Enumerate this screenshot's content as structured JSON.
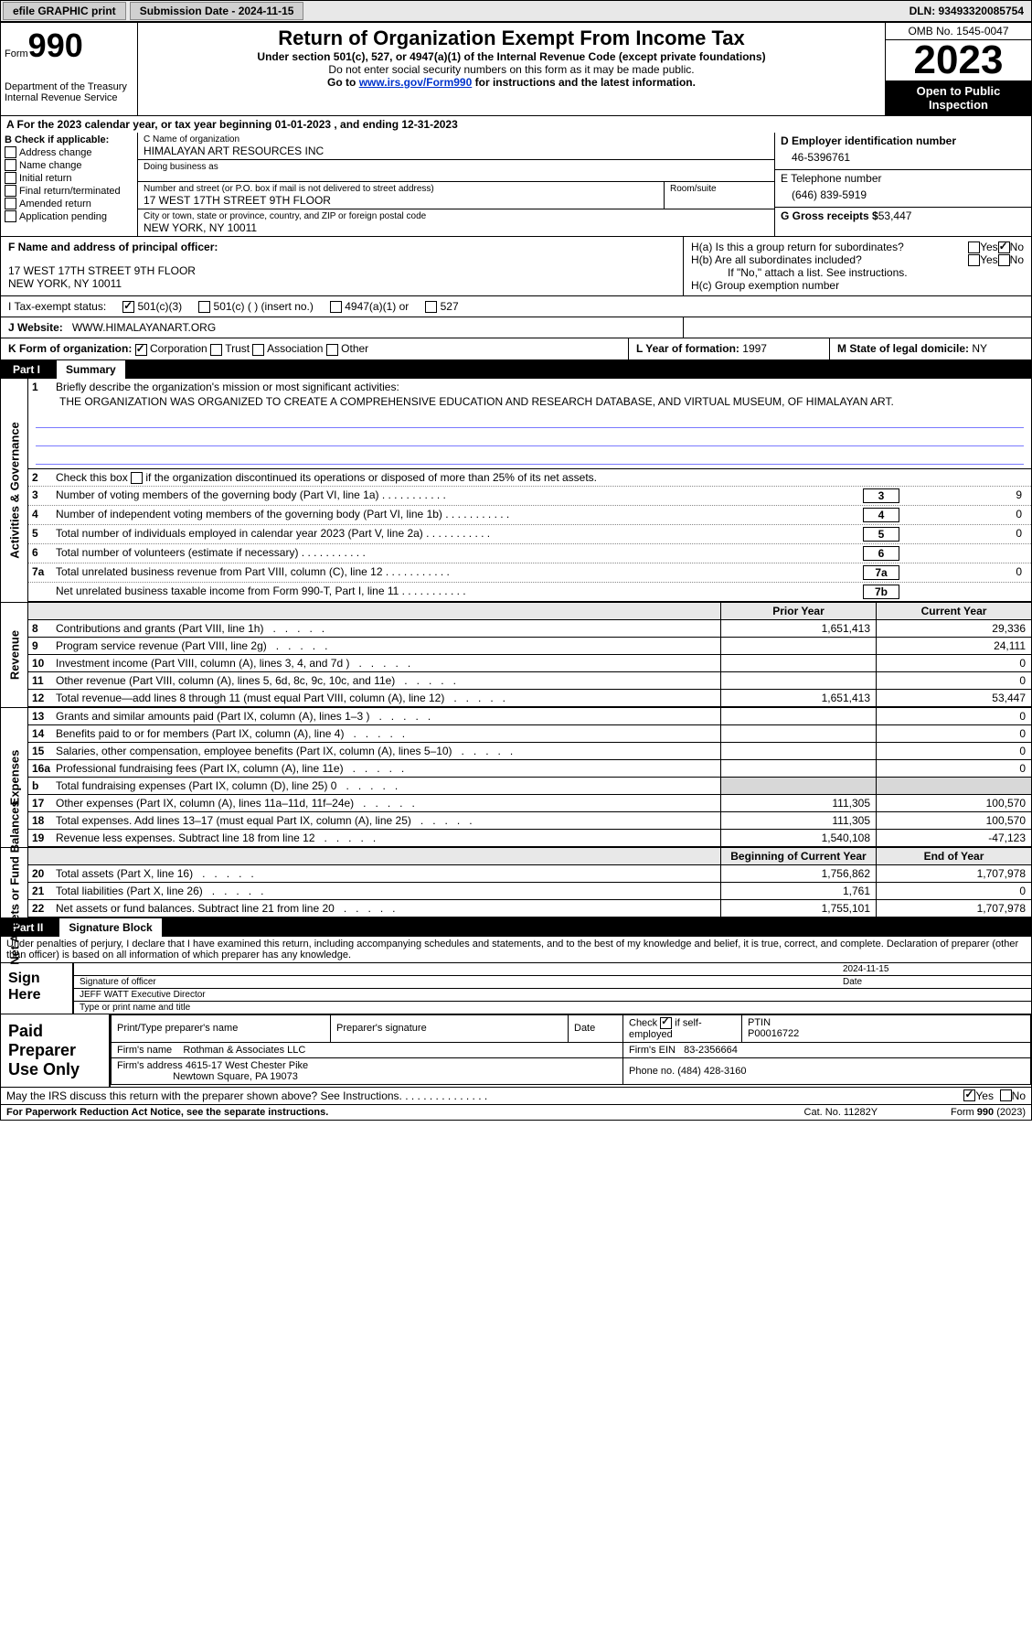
{
  "topbar": {
    "efile": "efile GRAPHIC print",
    "submission": "Submission Date - 2024-11-15",
    "dln": "DLN: 93493320085754"
  },
  "header": {
    "form_word": "Form",
    "form_num": "990",
    "dept": "Department of the Treasury Internal Revenue Service",
    "title": "Return of Organization Exempt From Income Tax",
    "sub1": "Under section 501(c), 527, or 4947(a)(1) of the Internal Revenue Code (except private foundations)",
    "sub2": "Do not enter social security numbers on this form as it may be made public.",
    "sub3_pre": "Go to ",
    "sub3_link": "www.irs.gov/Form990",
    "sub3_post": " for instructions and the latest information.",
    "omb": "OMB No. 1545-0047",
    "year": "2023",
    "inspect": "Open to Public Inspection"
  },
  "lineA": "A   For the 2023 calendar year, or tax year beginning 01-01-2023   , and ending 12-31-2023",
  "boxB": {
    "title": "B Check if applicable:",
    "items": [
      "Address change",
      "Name change",
      "Initial return",
      "Final return/terminated",
      "Amended return",
      "Application pending"
    ]
  },
  "boxC": {
    "name_lbl": "C Name of organization",
    "name": "HIMALAYAN ART RESOURCES INC",
    "dba_lbl": "Doing business as",
    "dba": "",
    "street_lbl": "Number and street (or P.O. box if mail is not delivered to street address)",
    "room_lbl": "Room/suite",
    "street": "17 WEST 17TH STREET 9TH FLOOR",
    "city_lbl": "City or town, state or province, country, and ZIP or foreign postal code",
    "city": "NEW YORK, NY  10011"
  },
  "boxD": {
    "ein_lbl": "D Employer identification number",
    "ein": "46-5396761",
    "tel_lbl": "E Telephone number",
    "tel": "(646) 839-5919",
    "gross_lbl": "G Gross receipts $",
    "gross": "53,447"
  },
  "boxF": {
    "lbl": "F  Name and address of principal officer:",
    "name": "",
    "addr1": "17 WEST 17TH STREET 9TH FLOOR",
    "addr2": "NEW YORK, NY  10011"
  },
  "boxH": {
    "ha": "H(a)  Is this a group return for subordinates?",
    "hb": "H(b)  Are all subordinates included?",
    "hb_note": "If \"No,\" attach a list. See instructions.",
    "hc": "H(c)  Group exemption number",
    "yes": "Yes",
    "no": "No"
  },
  "rowI": {
    "lbl": "I    Tax-exempt status:",
    "o1": "501(c)(3)",
    "o2": "501(c) (  ) (insert no.)",
    "o3": "4947(a)(1) or",
    "o4": "527"
  },
  "rowJ": {
    "lbl": "J    Website:",
    "val": "WWW.HIMALAYANART.ORG"
  },
  "rowK": {
    "lbl": "K Form of organization:",
    "corp": "Corporation",
    "trust": "Trust",
    "assoc": "Association",
    "other": "Other",
    "l_lbl": "L Year of formation:",
    "l_val": "1997",
    "m_lbl": "M State of legal domicile:",
    "m_val": "NY"
  },
  "part1": {
    "num": "Part I",
    "title": "Summary"
  },
  "gov": {
    "label": "Activities & Governance",
    "r1_num": "1",
    "r1_txt": "Briefly describe the organization's mission or most significant activities:",
    "r1_val": "THE ORGANIZATION WAS ORGANIZED TO CREATE A COMPREHENSIVE EDUCATION AND RESEARCH DATABASE, AND VIRTUAL MUSEUM, OF HIMALAYAN ART.",
    "r2_num": "2",
    "r2_txt": "Check this box      if the organization discontinued its operations or disposed of more than 25% of its net assets.",
    "r3_num": "3",
    "r3_txt": "Number of voting members of the governing body (Part VI, line 1a)",
    "r3_box": "3",
    "r3_val": "9",
    "r4_num": "4",
    "r4_txt": "Number of independent voting members of the governing body (Part VI, line 1b)",
    "r4_box": "4",
    "r4_val": "0",
    "r5_num": "5",
    "r5_txt": "Total number of individuals employed in calendar year 2023 (Part V, line 2a)",
    "r5_box": "5",
    "r5_val": "0",
    "r6_num": "6",
    "r6_txt": "Total number of volunteers (estimate if necessary)",
    "r6_box": "6",
    "r6_val": "",
    "r7a_num": "7a",
    "r7a_txt": "Total unrelated business revenue from Part VIII, column (C), line 12",
    "r7a_box": "7a",
    "r7a_val": "0",
    "r7b_num": "",
    "r7b_txt": "Net unrelated business taxable income from Form 990-T, Part I, line 11",
    "r7b_box": "7b",
    "r7b_val": ""
  },
  "revhead": {
    "prior": "Prior Year",
    "current": "Current Year"
  },
  "rev": {
    "label": "Revenue",
    "rows": [
      {
        "n": "8",
        "t": "Contributions and grants (Part VIII, line 1h)",
        "p": "1,651,413",
        "c": "29,336"
      },
      {
        "n": "9",
        "t": "Program service revenue (Part VIII, line 2g)",
        "p": "",
        "c": "24,111"
      },
      {
        "n": "10",
        "t": "Investment income (Part VIII, column (A), lines 3, 4, and 7d )",
        "p": "",
        "c": "0"
      },
      {
        "n": "11",
        "t": "Other revenue (Part VIII, column (A), lines 5, 6d, 8c, 9c, 10c, and 11e)",
        "p": "",
        "c": "0"
      },
      {
        "n": "12",
        "t": "Total revenue—add lines 8 through 11 (must equal Part VIII, column (A), line 12)",
        "p": "1,651,413",
        "c": "53,447"
      }
    ]
  },
  "exp": {
    "label": "Expenses",
    "rows": [
      {
        "n": "13",
        "t": "Grants and similar amounts paid (Part IX, column (A), lines 1–3 )",
        "p": "",
        "c": "0"
      },
      {
        "n": "14",
        "t": "Benefits paid to or for members (Part IX, column (A), line 4)",
        "p": "",
        "c": "0"
      },
      {
        "n": "15",
        "t": "Salaries, other compensation, employee benefits (Part IX, column (A), lines 5–10)",
        "p": "",
        "c": "0"
      },
      {
        "n": "16a",
        "t": "Professional fundraising fees (Part IX, column (A), line 11e)",
        "p": "",
        "c": "0"
      },
      {
        "n": "b",
        "t": "Total fundraising expenses (Part IX, column (D), line 25) 0",
        "p": "shade",
        "c": "shade"
      },
      {
        "n": "17",
        "t": "Other expenses (Part IX, column (A), lines 11a–11d, 11f–24e)",
        "p": "111,305",
        "c": "100,570"
      },
      {
        "n": "18",
        "t": "Total expenses. Add lines 13–17 (must equal Part IX, column (A), line 25)",
        "p": "111,305",
        "c": "100,570"
      },
      {
        "n": "19",
        "t": "Revenue less expenses. Subtract line 18 from line 12",
        "p": "1,540,108",
        "c": "-47,123"
      }
    ]
  },
  "nethead": {
    "begin": "Beginning of Current Year",
    "end": "End of Year"
  },
  "net": {
    "label": "Net Assets or Fund Balances",
    "rows": [
      {
        "n": "20",
        "t": "Total assets (Part X, line 16)",
        "p": "1,756,862",
        "c": "1,707,978"
      },
      {
        "n": "21",
        "t": "Total liabilities (Part X, line 26)",
        "p": "1,761",
        "c": "0"
      },
      {
        "n": "22",
        "t": "Net assets or fund balances. Subtract line 21 from line 20",
        "p": "1,755,101",
        "c": "1,707,978"
      }
    ]
  },
  "part2": {
    "num": "Part II",
    "title": "Signature Block"
  },
  "sig_decl": "Under penalties of perjury, I declare that I have examined this return, including accompanying schedules and statements, and to the best of my knowledge and belief, it is true, correct, and complete. Declaration of preparer (other than officer) is based on all information of which preparer has any knowledge.",
  "sign": {
    "lbl": "Sign Here",
    "date": "2024-11-15",
    "sig_lbl": "Signature of officer",
    "name": "JEFF WATT  Executive Director",
    "type_lbl": "Type or print name and title",
    "date_lbl": "Date"
  },
  "paid": {
    "lbl": "Paid Preparer Use Only",
    "print_lbl": "Print/Type preparer's name",
    "sig_lbl": "Preparer's signature",
    "date_lbl": "Date",
    "check_lbl": "Check       if self-employed",
    "ptin_lbl": "PTIN",
    "ptin": "P00016722",
    "firm_lbl": "Firm's name",
    "firm": "Rothman & Associates LLC",
    "ein_lbl": "Firm's EIN",
    "ein": "83-2356664",
    "addr_lbl": "Firm's address",
    "addr1": "4615-17 West Chester Pike",
    "addr2": "Newtown Square, PA  19073",
    "phone_lbl": "Phone no.",
    "phone": "(484) 428-3160"
  },
  "discuss": {
    "txt": "May the IRS discuss this return with the preparer shown above? See Instructions.   .    .    .    .    .    .    .    .    .    .    .    .    .    .",
    "yes": "Yes",
    "no": "No"
  },
  "footer": {
    "pra": "For Paperwork Reduction Act Notice, see the separate instructions.",
    "cat": "Cat. No. 11282Y",
    "form": "Form 990 (2023)"
  }
}
